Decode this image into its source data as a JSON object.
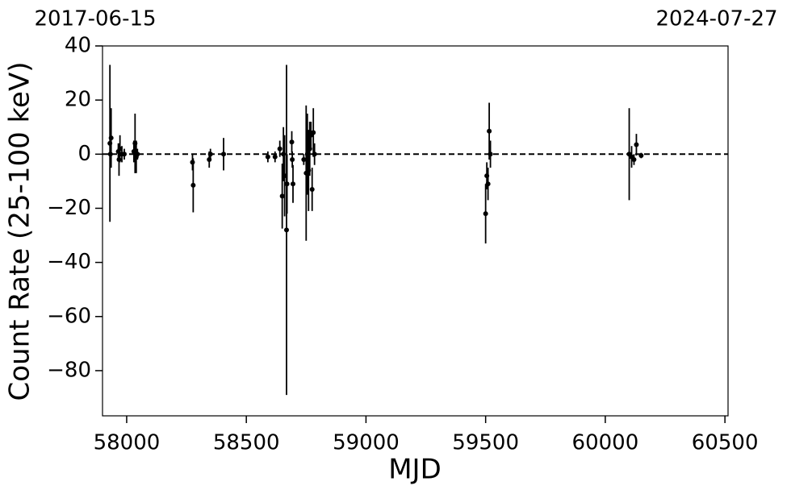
{
  "chart_data": {
    "type": "errorbar",
    "top_left_label": "2017-06-15",
    "top_right_label": "2024-07-27",
    "x_label": "MJD",
    "y_label": "Count Rate (25-100 keV)",
    "color": "#000000",
    "reference_line": 0,
    "xlim": [
      57899,
      60513
    ],
    "ylim": [
      -96.7,
      40
    ],
    "xticks": [
      58000,
      58500,
      59000,
      59500,
      60000,
      60500
    ],
    "yticks": [
      {
        "value": -80,
        "label": "−80"
      },
      {
        "value": -60,
        "label": "−60"
      },
      {
        "value": -40,
        "label": "−40"
      },
      {
        "value": -20,
        "label": "−20"
      },
      0,
      20,
      40
    ],
    "x": [
      57930,
      57935,
      57932,
      57965,
      57968,
      57972,
      57980,
      57990,
      58030,
      58035,
      58040,
      58045,
      58275,
      58278,
      58345,
      58350,
      58405,
      58590,
      58620,
      58640,
      58650,
      58655,
      58660,
      58668,
      58670,
      58690,
      58692,
      58695,
      58740,
      58750,
      58755,
      58760,
      58765,
      58770,
      58775,
      58780,
      58785,
      59500,
      59505,
      59510,
      59515,
      59520,
      60100,
      60110,
      60120,
      60130,
      60150
    ],
    "values": [
      4,
      6,
      0,
      1,
      -2,
      2,
      0,
      0,
      1,
      4,
      -1,
      0,
      -3,
      -11.5,
      -2,
      0,
      0,
      -1,
      -1,
      2,
      -15.5,
      0,
      -8,
      -28,
      -11,
      4.5,
      -2,
      -11,
      -2,
      -7,
      0,
      -6,
      2,
      7,
      -13,
      8,
      0,
      -22,
      -8,
      -11,
      8.5,
      0,
      0,
      -1,
      -2,
      3.5,
      -0.5
    ],
    "errors": [
      29,
      11,
      5,
      3,
      6,
      5,
      3,
      2,
      4,
      11,
      6,
      2,
      3,
      10,
      3,
      2,
      6,
      2,
      2,
      3,
      12,
      10,
      15,
      61,
      11,
      4,
      3,
      7,
      2,
      25,
      15,
      15,
      10,
      5,
      8,
      9,
      4,
      11,
      5,
      6,
      10.5,
      5,
      17,
      4,
      2,
      4,
      1
    ]
  }
}
